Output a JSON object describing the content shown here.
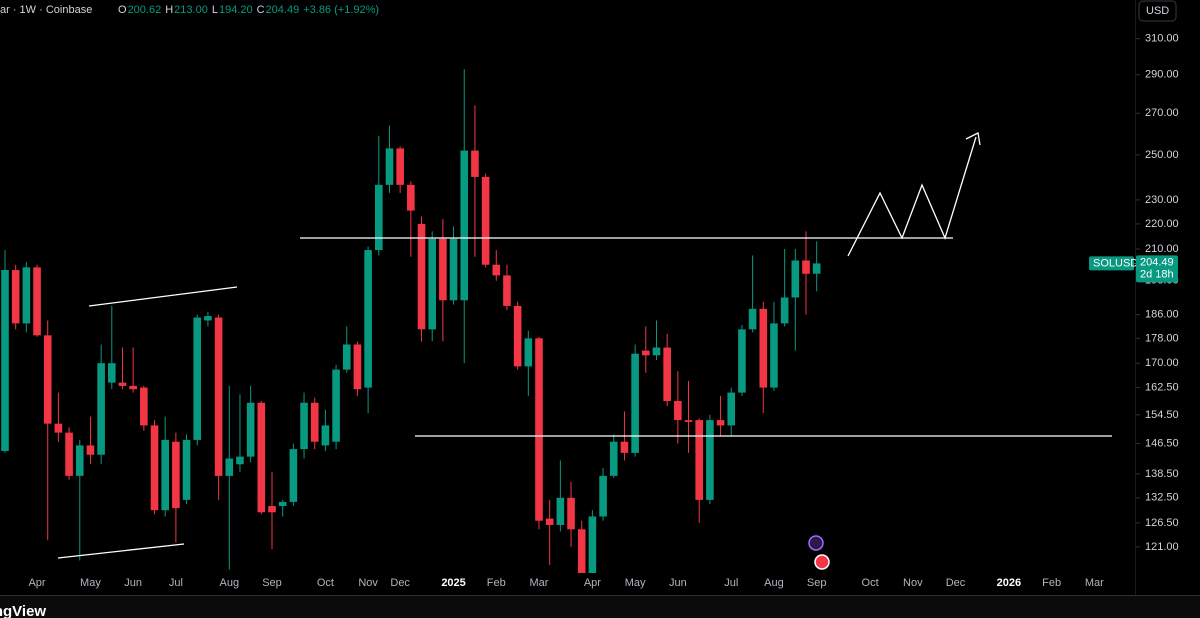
{
  "header": {
    "title": "ar · 1W · Coinbase",
    "ohlc": [
      {
        "key": "O",
        "text": "200.62"
      },
      {
        "key": "H",
        "text": "213.00"
      },
      {
        "key": "L",
        "text": "194.20"
      },
      {
        "key": "C",
        "text": "204.49"
      }
    ],
    "change": "+3.86 (+1.92%)",
    "currency": "USD"
  },
  "footer": {
    "brand": "TradingView"
  },
  "chart_data": {
    "type": "candlestick",
    "log_scale": true,
    "grid": false,
    "up_color": "#089981",
    "down_color": "#f23645",
    "ylim": [
      115.5,
      333
    ],
    "yticks": [
      {
        "value": 121,
        "label": "121.00"
      },
      {
        "value": 126.5,
        "label": "126.50"
      },
      {
        "value": 132.5,
        "label": "132.50"
      },
      {
        "value": 138.5,
        "label": "138.50"
      },
      {
        "value": 146.5,
        "label": "146.50"
      },
      {
        "value": 154.5,
        "label": "154.50"
      },
      {
        "value": 162.5,
        "label": "162.50"
      },
      {
        "value": 170,
        "label": "170.00"
      },
      {
        "value": 178,
        "label": "178.00"
      },
      {
        "value": 186,
        "label": "186.00"
      },
      {
        "value": 198,
        "label": "198.00"
      },
      {
        "value": 210,
        "label": "210.00"
      },
      {
        "value": 220,
        "label": "220.00"
      },
      {
        "value": 230,
        "label": "230.00"
      },
      {
        "value": 250,
        "label": "250.00"
      },
      {
        "value": 270,
        "label": "270.00"
      },
      {
        "value": 290,
        "label": "290.00"
      },
      {
        "value": 310,
        "label": "310.00"
      }
    ],
    "categories": [
      null,
      null,
      null,
      "Apr",
      null,
      null,
      null,
      null,
      "May",
      null,
      null,
      null,
      "Jun",
      null,
      null,
      null,
      "Jul",
      null,
      null,
      null,
      null,
      "Aug",
      null,
      null,
      null,
      "Sep",
      null,
      null,
      null,
      null,
      "Oct",
      null,
      null,
      null,
      "Nov",
      null,
      null,
      "Dec",
      null,
      null,
      null,
      null,
      "2025",
      null,
      null,
      null,
      "Feb",
      null,
      null,
      null,
      "Mar",
      null,
      null,
      null,
      null,
      "Apr",
      null,
      null,
      null,
      "May",
      null,
      null,
      null,
      "Jun",
      null,
      null,
      null,
      null,
      "Jul",
      null,
      null,
      null,
      "Aug",
      null,
      null,
      null,
      "Sep",
      null,
      null,
      null,
      null,
      "Oct",
      null,
      null,
      null,
      "Nov",
      null,
      null,
      null,
      "Dec",
      null,
      null,
      null,
      null,
      "2026",
      null,
      null,
      null,
      "Feb",
      null,
      null,
      null,
      "Mar"
    ],
    "open": [
      144.5,
      202,
      183,
      203,
      179,
      152,
      149.5,
      138,
      146,
      143.5,
      164,
      164,
      163,
      162.5,
      151.5,
      129.5,
      147,
      132,
      147.5,
      184,
      185,
      138,
      141,
      143,
      158,
      130.5,
      130.5,
      131.5,
      145,
      158,
      146,
      147,
      168,
      176,
      162.5,
      209.6,
      236.5,
      253,
      236.5,
      220,
      181,
      214,
      191,
      191,
      252,
      240,
      204,
      200,
      189,
      169,
      178,
      127.5,
      126,
      132.5,
      125,
      112,
      128,
      138,
      147,
      144,
      174,
      172.5,
      175,
      158.5,
      153,
      153,
      132,
      153,
      151.5,
      161,
      181,
      188,
      162.5,
      183,
      192,
      205.6,
      200.62,
      null,
      null,
      null,
      null,
      null,
      null,
      null,
      null,
      null,
      null,
      null,
      null,
      null,
      null,
      null,
      null,
      null,
      null,
      null,
      null,
      null,
      null,
      null,
      null,
      null,
      null
    ],
    "high": [
      209.6,
      204,
      205,
      204,
      184,
      161,
      151,
      147.5,
      154,
      176,
      189,
      175,
      175,
      163,
      153,
      154,
      149.5,
      149,
      186,
      187,
      186,
      163,
      160.5,
      163,
      158.5,
      139,
      132,
      146.5,
      161,
      159.5,
      156,
      169.5,
      182,
      177,
      211,
      259,
      264,
      254,
      238,
      223,
      217,
      222,
      219,
      293,
      274,
      241.5,
      209.6,
      204,
      190.5,
      180.5,
      178.5,
      132,
      142,
      136.5,
      127,
      129.5,
      140,
      149,
      155.5,
      176,
      182,
      184,
      179.5,
      167.5,
      164.5,
      153.5,
      154.5,
      160,
      162.5,
      182.5,
      207.5,
      190.5,
      190.5,
      210,
      210,
      217,
      213,
      null,
      null,
      null,
      null,
      null,
      null,
      null,
      null,
      null,
      null,
      null,
      null,
      null,
      null,
      null,
      null,
      null,
      null,
      null,
      null,
      null,
      null,
      null,
      null,
      null,
      null
    ],
    "low": [
      144,
      181,
      180,
      178.5,
      122.5,
      147,
      137,
      118,
      141,
      141,
      162,
      162,
      161,
      150,
      128.5,
      128,
      122,
      131,
      146,
      182,
      132,
      116,
      139,
      141.5,
      128.5,
      120.5,
      128,
      130.5,
      142.5,
      145,
      144.5,
      145,
      167,
      160,
      155,
      207.5,
      233,
      233,
      207,
      177,
      177,
      177,
      189.5,
      170,
      207,
      203,
      198,
      187.5,
      168,
      160,
      125,
      117,
      124.5,
      121,
      105,
      105,
      127,
      137.5,
      142,
      143,
      167,
      171,
      157,
      146.5,
      144,
      126.5,
      131,
      148.5,
      148.5,
      160,
      180,
      155,
      161.5,
      182,
      174,
      186,
      194.2,
      null,
      null,
      null,
      null,
      null,
      null,
      null,
      null,
      null,
      null,
      null,
      null,
      null,
      null,
      null,
      null,
      null,
      null,
      null,
      null,
      null,
      null,
      null,
      null,
      null,
      null
    ],
    "close": [
      202,
      183,
      203,
      179,
      152,
      149.5,
      138,
      146,
      143.5,
      170,
      170,
      163,
      162,
      151.5,
      129.5,
      147.5,
      130,
      147.5,
      185,
      185.5,
      138,
      142.5,
      143,
      158,
      129,
      129,
      131.5,
      145,
      158,
      147,
      151.5,
      168,
      176,
      162,
      209.6,
      236.5,
      253,
      236.5,
      225.5,
      181,
      214,
      191,
      214,
      252,
      240,
      204,
      200,
      189,
      169,
      178,
      127,
      126,
      132.5,
      125,
      112,
      128,
      138,
      147,
      144,
      173,
      172.5,
      175,
      158.5,
      153,
      152.5,
      132,
      153,
      151.5,
      161,
      181,
      188,
      162.5,
      183,
      192,
      205.6,
      200.6,
      204.49,
      null,
      null,
      null,
      null,
      null,
      null,
      null,
      null,
      null,
      null,
      null,
      null,
      null,
      null,
      null,
      null,
      null,
      null,
      null,
      null,
      null,
      null,
      null,
      null,
      null,
      null
    ],
    "last_price": {
      "symbol": "SOLUSD",
      "value": 204.49,
      "countdown": "2d 18h"
    }
  }
}
